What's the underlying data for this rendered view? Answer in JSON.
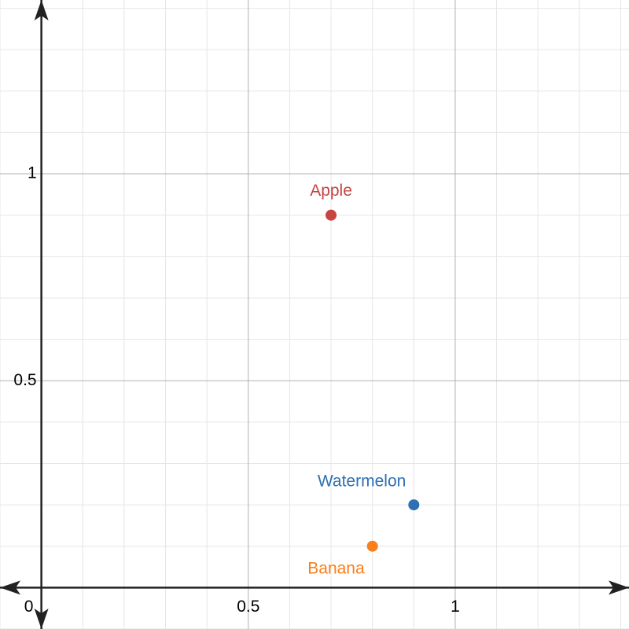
{
  "chart_data": {
    "type": "scatter",
    "xlim": [
      -0.1,
      1.42
    ],
    "ylim": [
      -0.1,
      1.42
    ],
    "xticks": [
      0,
      0.5,
      1
    ],
    "yticks": [
      0.5,
      1
    ],
    "xgrid": [
      -0.1,
      0.1,
      0.2,
      0.3,
      0.4,
      0.6,
      0.7,
      0.8,
      0.9,
      1.1,
      1.2,
      1.3,
      1.4
    ],
    "ygrid": [
      -0.1,
      0.1,
      0.2,
      0.3,
      0.4,
      0.6,
      0.7,
      0.8,
      0.9,
      1.1,
      1.2,
      1.3,
      1.4
    ],
    "grid": true,
    "series": [
      {
        "name": "Apple",
        "color": "#c74440",
        "x": [
          0.7
        ],
        "values": [
          0.9
        ],
        "label_position": "top"
      },
      {
        "name": "Watermelon",
        "color": "#2d70b3",
        "x": [
          0.9
        ],
        "values": [
          0.2
        ],
        "label_position": "top-left"
      },
      {
        "name": "Banana",
        "color": "#fa7e19",
        "x": [
          0.8
        ],
        "values": [
          0.1
        ],
        "label_position": "bottom-left"
      }
    ]
  }
}
